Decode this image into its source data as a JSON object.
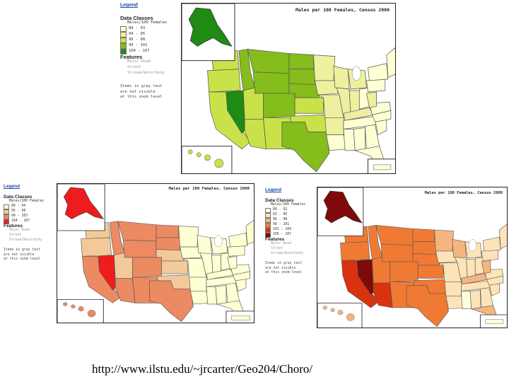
{
  "maps": [
    {
      "legend_link": "Legend",
      "data_classes_heading": "Data Classes",
      "data_classes_unit": "Males/100 Females",
      "classes": [
        {
          "label": "89 - 93",
          "color": "#ffffd4"
        },
        {
          "label": "94 - 95",
          "color": "#eef0a0"
        },
        {
          "label": "96 - 98",
          "color": "#c9e24a"
        },
        {
          "label": "99 - 101",
          "color": "#84bd1c"
        },
        {
          "label": "104 - 107",
          "color": "#1f8a14"
        }
      ],
      "features_heading": "Features",
      "features": [
        "Major Road",
        "Street",
        "Stream/Waterbody"
      ],
      "note_lines": [
        "Items in gray text",
        "are not visible",
        "at this zoom level"
      ],
      "title": "Males per 100 Females, Census 2000"
    },
    {
      "legend_link": "Legend",
      "data_classes_heading": "Data Classes",
      "data_classes_unit": "Males/100 Females",
      "classes": [
        {
          "label": "89 - 94",
          "color": "#ffffd4"
        },
        {
          "label": "95 - 98",
          "color": "#f3c99a"
        },
        {
          "label": "99 - 103",
          "color": "#ec8a62"
        },
        {
          "label": "104 - 107",
          "color": "#ee1c1c"
        }
      ],
      "features_heading": "Features",
      "features": [
        "Major Road",
        "Street",
        "Stream/Waterbody"
      ],
      "note_lines": [
        "Items in gray text",
        "are not visible",
        "at this zoom level"
      ],
      "title": "Males per 100 Females, Census 2000"
    },
    {
      "legend_link": "Legend",
      "data_classes_heading": "Data Classes",
      "data_classes_unit": "Males/100 Females",
      "classes": [
        {
          "label": "89 - 92",
          "color": "#ffffe0"
        },
        {
          "label": "93 - 95",
          "color": "#fde4b8"
        },
        {
          "label": "96 - 98",
          "color": "#f7b57e"
        },
        {
          "label": "99 - 101",
          "color": "#f07a34"
        },
        {
          "label": "102 - 104",
          "color": "#d8320f"
        },
        {
          "label": "105 - 107",
          "color": "#7e0a0a"
        }
      ],
      "features_heading": "Features",
      "features": [
        "Major Road",
        "Street",
        "Stream/Waterbody"
      ],
      "note_lines": [
        "Items in gray text",
        "are not visible",
        "at this zoom level"
      ],
      "title": "Males per 100 Females, Census 2000"
    }
  ],
  "footer_url": "http://www.ilstu.edu/~jrcarter/Geo204/Choro/"
}
